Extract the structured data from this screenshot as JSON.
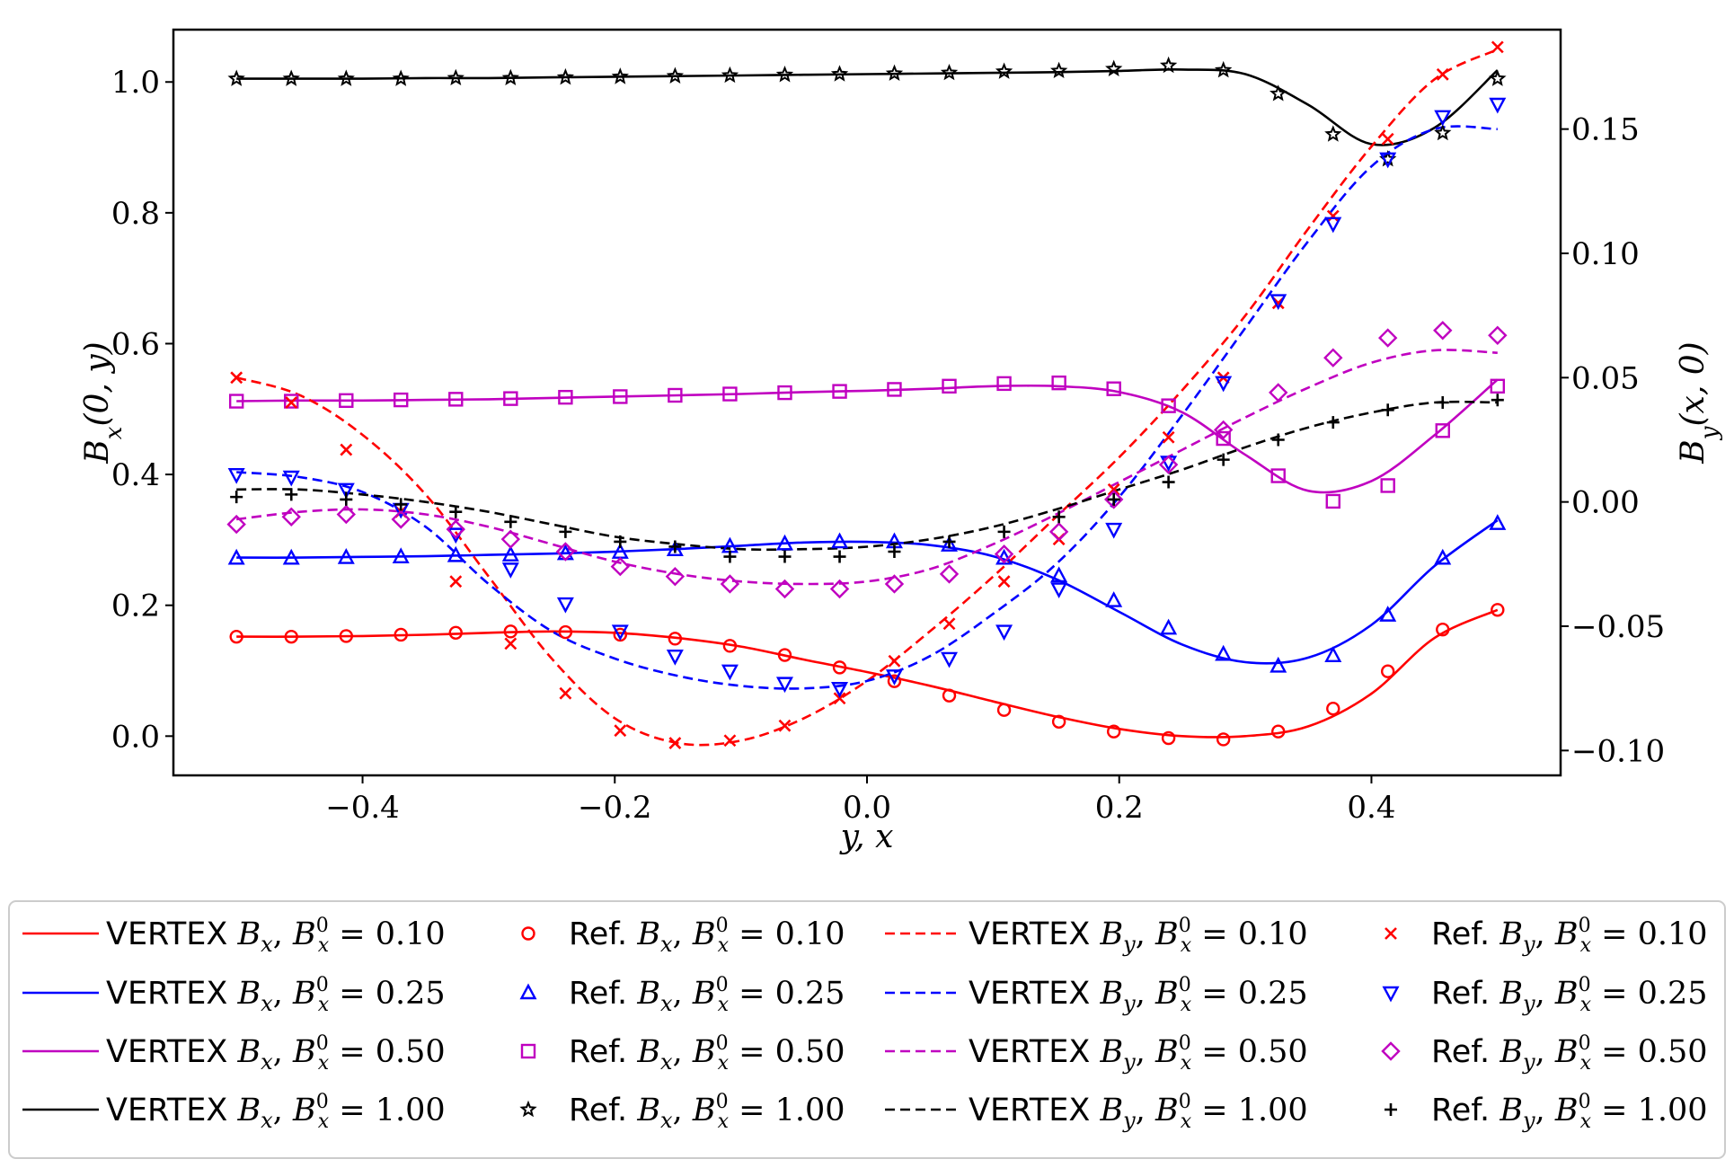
{
  "chart_data": {
    "type": "line",
    "title": "",
    "xlabel": "y, x",
    "ylabel_left": "B_x(0, y)",
    "ylabel_right": "B_y(x, 0)",
    "xlim": [
      -0.55,
      0.55
    ],
    "ylim_left": [
      -0.06,
      1.08
    ],
    "ylim_right": [
      -0.11,
      0.19
    ],
    "xticks": [
      -0.4,
      -0.2,
      0.0,
      0.2,
      0.4
    ],
    "xtick_labels": [
      "−0.4",
      "−0.2",
      "0.0",
      "0.2",
      "0.4"
    ],
    "yticks_left": [
      0.0,
      0.2,
      0.4,
      0.6,
      0.8,
      1.0
    ],
    "ytick_labels_left": [
      "0.0",
      "0.2",
      "0.4",
      "0.6",
      "0.8",
      "1.0"
    ],
    "yticks_right": [
      -0.1,
      -0.05,
      0.0,
      0.05,
      0.1,
      0.15
    ],
    "ytick_labels_right": [
      "−0.10",
      "−0.05",
      "0.00",
      "0.05",
      "0.10",
      "0.15"
    ],
    "x_points": [
      -0.5,
      -0.4565,
      -0.413,
      -0.3696,
      -0.3261,
      -0.2826,
      -0.2391,
      -0.1957,
      -0.1522,
      -0.1087,
      -0.0652,
      -0.0217,
      0.0217,
      0.0652,
      0.1087,
      0.1522,
      0.1957,
      0.2391,
      0.2826,
      0.3261,
      0.3696,
      0.413,
      0.4565,
      0.5
    ],
    "curve_x": [
      -0.5,
      -0.45,
      -0.4,
      -0.35,
      -0.3,
      -0.25,
      -0.2,
      -0.15,
      -0.1,
      -0.05,
      0.0,
      0.05,
      0.1,
      0.15,
      0.2,
      0.25,
      0.3,
      0.35,
      0.4,
      0.45,
      0.5
    ],
    "legend_location": "below",
    "series": [
      {
        "name": "VERTEX B_x, B_x^0 = 0.10",
        "kind": "line",
        "axis": "left",
        "color": "#ff0000",
        "dash": "solid",
        "values": [
          0.152,
          0.152,
          0.153,
          0.155,
          0.158,
          0.16,
          0.158,
          0.15,
          0.137,
          0.117,
          0.098,
          0.077,
          0.053,
          0.03,
          0.011,
          0.0,
          0.0,
          0.015,
          0.065,
          0.15,
          0.193
        ]
      },
      {
        "name": "VERTEX B_x, B_x^0 = 0.25",
        "kind": "line",
        "axis": "left",
        "color": "#0000ff",
        "dash": "solid",
        "values": [
          0.273,
          0.273,
          0.274,
          0.275,
          0.277,
          0.279,
          0.282,
          0.286,
          0.291,
          0.296,
          0.297,
          0.292,
          0.275,
          0.24,
          0.19,
          0.14,
          0.113,
          0.12,
          0.17,
          0.26,
          0.33
        ]
      },
      {
        "name": "VERTEX B_x, B_x^0 = 0.50",
        "kind": "line",
        "axis": "left",
        "color": "#c000c0",
        "dash": "solid",
        "values": [
          0.512,
          0.513,
          0.513,
          0.514,
          0.515,
          0.517,
          0.519,
          0.521,
          0.523,
          0.526,
          0.528,
          0.531,
          0.535,
          0.535,
          0.526,
          0.495,
          0.43,
          0.375,
          0.39,
          0.46,
          0.545
        ]
      },
      {
        "name": "VERTEX B_x, B_x^0 = 1.00",
        "kind": "line",
        "axis": "left",
        "color": "#000000",
        "dash": "solid",
        "values": [
          1.005,
          1.005,
          1.005,
          1.006,
          1.006,
          1.007,
          1.008,
          1.009,
          1.01,
          1.011,
          1.012,
          1.013,
          1.014,
          1.015,
          1.017,
          1.019,
          1.012,
          0.965,
          0.905,
          0.93,
          1.018
        ]
      },
      {
        "name": "VERTEX B_y, B_x^0 = 0.10",
        "kind": "line",
        "axis": "right",
        "color": "#ff0000",
        "dash": "dashed",
        "values": [
          0.05,
          0.043,
          0.027,
          0.003,
          -0.03,
          -0.063,
          -0.087,
          -0.097,
          -0.096,
          -0.087,
          -0.072,
          -0.052,
          -0.03,
          -0.006,
          0.018,
          0.045,
          0.075,
          0.11,
          0.143,
          0.17,
          0.182
        ]
      },
      {
        "name": "VERTEX B_y, B_x^0 = 0.25",
        "kind": "line",
        "axis": "right",
        "color": "#0000ff",
        "dash": "dashed",
        "values": [
          0.012,
          0.01,
          0.004,
          -0.01,
          -0.033,
          -0.052,
          -0.063,
          -0.07,
          -0.074,
          -0.075,
          -0.072,
          -0.062,
          -0.045,
          -0.025,
          0.002,
          0.035,
          0.07,
          0.105,
          0.135,
          0.15,
          0.15
        ]
      },
      {
        "name": "VERTEX B_y, B_x^0 = 0.50",
        "kind": "line",
        "axis": "right",
        "color": "#c000c0",
        "dash": "dashed",
        "values": [
          -0.007,
          -0.004,
          -0.003,
          -0.005,
          -0.01,
          -0.017,
          -0.024,
          -0.029,
          -0.032,
          -0.033,
          -0.032,
          -0.027,
          -0.017,
          -0.005,
          0.008,
          0.021,
          0.034,
          0.046,
          0.056,
          0.061,
          0.06
        ]
      },
      {
        "name": "VERTEX B_y, B_x^0 = 1.00",
        "kind": "line",
        "axis": "right",
        "color": "#000000",
        "dash": "dashed",
        "values": [
          0.005,
          0.005,
          0.003,
          0.0,
          -0.004,
          -0.009,
          -0.014,
          -0.017,
          -0.019,
          -0.019,
          -0.018,
          -0.015,
          -0.01,
          -0.003,
          0.005,
          0.013,
          0.022,
          0.03,
          0.036,
          0.04,
          0.04
        ]
      },
      {
        "name": "Ref. B_x, B_x^0 = 0.10",
        "kind": "marker",
        "marker": "circle",
        "axis": "left",
        "color": "#ff0000",
        "values": [
          0.152,
          0.152,
          0.153,
          0.155,
          0.158,
          0.16,
          0.159,
          0.155,
          0.149,
          0.138,
          0.124,
          0.105,
          0.084,
          0.062,
          0.04,
          0.022,
          0.007,
          -0.003,
          -0.005,
          0.007,
          0.042,
          0.099,
          0.163,
          0.193
        ]
      },
      {
        "name": "Ref. B_x, B_x^0 = 0.25",
        "kind": "marker",
        "marker": "triangle-up",
        "axis": "left",
        "color": "#0000ff",
        "values": [
          0.272,
          0.272,
          0.273,
          0.274,
          0.276,
          0.277,
          0.279,
          0.281,
          0.285,
          0.29,
          0.294,
          0.297,
          0.297,
          0.292,
          0.272,
          0.245,
          0.207,
          0.165,
          0.125,
          0.107,
          0.123,
          0.185,
          0.272,
          0.325
        ]
      },
      {
        "name": "Ref. B_x, B_x^0 = 0.50",
        "kind": "marker",
        "marker": "square",
        "axis": "left",
        "color": "#c000c0",
        "values": [
          0.512,
          0.512,
          0.513,
          0.514,
          0.515,
          0.516,
          0.518,
          0.519,
          0.521,
          0.523,
          0.525,
          0.527,
          0.53,
          0.535,
          0.539,
          0.54,
          0.531,
          0.505,
          0.455,
          0.398,
          0.359,
          0.383,
          0.467,
          0.535
        ]
      },
      {
        "name": "Ref. B_x, B_x^0 = 1.00",
        "kind": "marker",
        "marker": "star",
        "axis": "left",
        "color": "#000000",
        "values": [
          1.005,
          1.005,
          1.005,
          1.005,
          1.006,
          1.006,
          1.007,
          1.008,
          1.009,
          1.01,
          1.011,
          1.012,
          1.013,
          1.014,
          1.016,
          1.017,
          1.02,
          1.025,
          1.018,
          0.982,
          0.92,
          0.882,
          0.922,
          1.005
        ]
      },
      {
        "name": "Ref. B_y, B_x^0 = 0.10",
        "kind": "marker",
        "marker": "x",
        "axis": "right",
        "color": "#ff0000",
        "values": [
          0.05,
          0.04,
          0.021,
          -0.004,
          -0.032,
          -0.057,
          -0.077,
          -0.092,
          -0.097,
          -0.096,
          -0.09,
          -0.079,
          -0.064,
          -0.049,
          -0.032,
          -0.015,
          0.005,
          0.026,
          0.05,
          0.08,
          0.115,
          0.146,
          0.172,
          0.183
        ]
      },
      {
        "name": "Ref. B_y, B_x^0 = 0.25",
        "kind": "marker",
        "marker": "triangle-down",
        "axis": "right",
        "color": "#0000ff",
        "values": [
          0.011,
          0.01,
          0.005,
          -0.003,
          -0.013,
          -0.027,
          -0.041,
          -0.052,
          -0.062,
          -0.068,
          -0.073,
          -0.075,
          -0.07,
          -0.063,
          -0.052,
          -0.035,
          -0.011,
          0.016,
          0.048,
          0.081,
          0.112,
          0.138,
          0.155,
          0.16
        ]
      },
      {
        "name": "Ref. B_y, B_x^0 = 0.50",
        "kind": "marker",
        "marker": "diamond",
        "axis": "right",
        "color": "#c000c0",
        "values": [
          -0.009,
          -0.006,
          -0.005,
          -0.007,
          -0.011,
          -0.015,
          -0.02,
          -0.026,
          -0.03,
          -0.033,
          -0.035,
          -0.035,
          -0.033,
          -0.029,
          -0.021,
          -0.012,
          0.001,
          0.015,
          0.029,
          0.044,
          0.058,
          0.066,
          0.069,
          0.067
        ]
      },
      {
        "name": "Ref. B_y, B_x^0 = 1.00",
        "kind": "marker",
        "marker": "plus",
        "axis": "right",
        "color": "#000000",
        "values": [
          0.002,
          0.003,
          0.001,
          -0.001,
          -0.004,
          -0.008,
          -0.012,
          -0.016,
          -0.018,
          -0.022,
          -0.022,
          -0.022,
          -0.02,
          -0.016,
          -0.012,
          -0.006,
          0.001,
          0.008,
          0.017,
          0.025,
          0.032,
          0.037,
          0.04,
          0.041
        ]
      }
    ]
  },
  "legend": [
    {
      "prefix": "VERTEX",
      "comp": "x",
      "value": "0.10"
    },
    {
      "prefix": "VERTEX",
      "comp": "x",
      "value": "0.25"
    },
    {
      "prefix": "VERTEX",
      "comp": "x",
      "value": "0.50"
    },
    {
      "prefix": "VERTEX",
      "comp": "x",
      "value": "1.00"
    },
    {
      "prefix": "Ref.",
      "comp": "x",
      "value": "0.10"
    },
    {
      "prefix": "Ref.",
      "comp": "x",
      "value": "0.25"
    },
    {
      "prefix": "Ref.",
      "comp": "x",
      "value": "0.50"
    },
    {
      "prefix": "Ref.",
      "comp": "x",
      "value": "1.00"
    },
    {
      "prefix": "VERTEX",
      "comp": "y",
      "value": "0.10"
    },
    {
      "prefix": "VERTEX",
      "comp": "y",
      "value": "0.25"
    },
    {
      "prefix": "VERTEX",
      "comp": "y",
      "value": "0.50"
    },
    {
      "prefix": "VERTEX",
      "comp": "y",
      "value": "1.00"
    },
    {
      "prefix": "Ref.",
      "comp": "y",
      "value": "0.10"
    },
    {
      "prefix": "Ref.",
      "comp": "y",
      "value": "0.25"
    },
    {
      "prefix": "Ref.",
      "comp": "y",
      "value": "0.50"
    },
    {
      "prefix": "Ref.",
      "comp": "y",
      "value": "1.00"
    }
  ]
}
